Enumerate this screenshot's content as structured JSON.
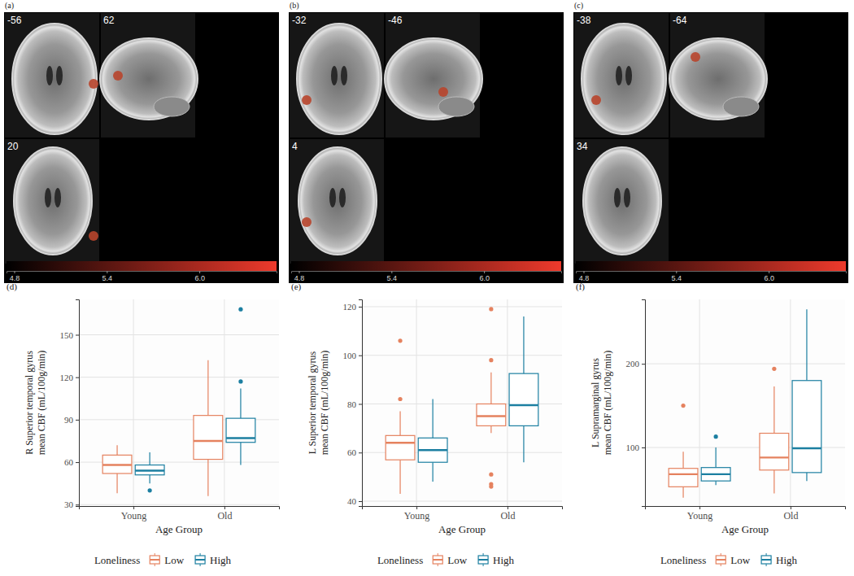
{
  "chart_data": [
    {
      "type": "brain_slices",
      "panel": "(a)",
      "slices": [
        -56,
        62,
        20
      ],
      "colorbar": {
        "range": [
          4.75,
          6.5
        ],
        "ticks": [
          4.8,
          5.4,
          {
            "value": 6,
            "label": "6.0"
          }
        ]
      }
    },
    {
      "type": "brain_slices",
      "panel": "(b)",
      "slices": [
        -32,
        -46,
        4
      ],
      "colorbar": {
        "range": [
          4.75,
          6.5
        ],
        "ticks": [
          4.8,
          5.4,
          {
            "value": 6,
            "label": "6.0"
          }
        ]
      }
    },
    {
      "type": "brain_slices",
      "panel": "(c)",
      "slices": [
        -38,
        -64,
        34
      ],
      "colorbar": {
        "range": [
          4.75,
          6.5
        ],
        "ticks": [
          4.8,
          5.4,
          {
            "value": 6,
            "label": "6.0"
          }
        ]
      }
    },
    {
      "type": "box",
      "panel": "(d)",
      "x_label": "Age Group",
      "y_label": [
        "R Superior temporal gyrus",
        "mean CBF (mL/100g/min)"
      ],
      "categories": [
        "Young",
        "Old"
      ],
      "ylim": [
        29,
        175
      ],
      "yticks": [
        30,
        60,
        90,
        120,
        150
      ],
      "grid": true,
      "legend": "bottom",
      "legend_title": "Loneliness",
      "series": [
        {
          "name": "Low",
          "color": "#e5825f",
          "boxes": [
            {
              "min": 38,
              "q1": 52,
              "median": 58,
              "q3": 65,
              "max": 72,
              "outliers": []
            },
            {
              "min": 36,
              "q1": 62,
              "median": 75,
              "q3": 93,
              "max": 132,
              "outliers": []
            }
          ]
        },
        {
          "name": "High",
          "color": "#1c7fa1",
          "boxes": [
            {
              "min": 45,
              "q1": 51,
              "median": 54,
              "q3": 58,
              "max": 67,
              "outliers": [
                40
              ]
            },
            {
              "min": 58,
              "q1": 74,
              "median": 77,
              "q3": 91,
              "max": 112,
              "outliers": [
                117,
                168
              ]
            }
          ]
        }
      ]
    },
    {
      "type": "box",
      "panel": "(e)",
      "x_label": "Age Group",
      "y_label": [
        "L Superior temporal gyrus",
        "mean CBF (mL/100g/min)"
      ],
      "categories": [
        "Young",
        "Old"
      ],
      "ylim": [
        38,
        123
      ],
      "yticks": [
        40,
        60,
        80,
        100,
        120
      ],
      "grid": true,
      "legend": "bottom",
      "legend_title": "Loneliness",
      "series": [
        {
          "name": "Low",
          "color": "#e5825f",
          "boxes": [
            {
              "min": 43,
              "q1": 57,
              "median": 64,
              "q3": 67,
              "max": 77,
              "outliers": [
                82,
                106
              ]
            },
            {
              "min": 68,
              "q1": 71,
              "median": 75,
              "q3": 80,
              "max": 93,
              "outliers": [
                98,
                119,
                51,
                47,
                46
              ]
            }
          ]
        },
        {
          "name": "High",
          "color": "#1c7fa1",
          "boxes": [
            {
              "min": 48,
              "q1": 56,
              "median": 61,
              "q3": 66,
              "max": 82,
              "outliers": []
            },
            {
              "min": 56,
              "q1": 71,
              "median": 79.5,
              "q3": 92.5,
              "max": 116,
              "outliers": []
            }
          ]
        }
      ]
    },
    {
      "type": "box",
      "panel": "(f)",
      "x_label": "Age Group",
      "y_label": [
        "L Supramarginal gyrus",
        "mean CBF (mL/100g/min)"
      ],
      "categories": [
        "Young",
        "Old"
      ],
      "ylim": [
        30,
        277
      ],
      "yticks": [
        100,
        200
      ],
      "grid": true,
      "legend": "bottom",
      "legend_title": "Loneliness",
      "series": [
        {
          "name": "Low",
          "color": "#e5825f",
          "boxes": [
            {
              "min": 40,
              "q1": 53,
              "median": 68,
              "q3": 75,
              "max": 95,
              "outliers": [
                150
              ]
            },
            {
              "min": 45,
              "q1": 73,
              "median": 88,
              "q3": 117,
              "max": 173,
              "outliers": [
                194
              ]
            }
          ]
        },
        {
          "name": "High",
          "color": "#1c7fa1",
          "boxes": [
            {
              "min": 55,
              "q1": 60,
              "median": 68,
              "q3": 76,
              "max": 100,
              "outliers": [
                113
              ]
            },
            {
              "min": 60,
              "q1": 70,
              "median": 99,
              "q3": 180,
              "max": 265,
              "outliers": []
            }
          ]
        }
      ]
    }
  ]
}
